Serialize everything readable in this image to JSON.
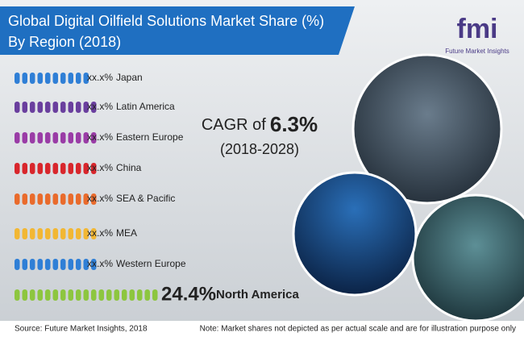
{
  "header": {
    "title_line1": "Global Digital Oilfield Solutions Market Share (%)",
    "title_line2": "By Region (2018)"
  },
  "logo": {
    "mark": "fmi",
    "name": "Future Market Insights"
  },
  "regions": [
    {
      "share": "xx.x%",
      "region": "Japan",
      "color": "#2f7fd6",
      "pills": 10
    },
    {
      "share": "xx.x%",
      "region": "Latin America",
      "color": "#6a3f9e",
      "pills": 11
    },
    {
      "share": "xx.x%",
      "region": "Eastern Europe",
      "color": "#9a3ca6",
      "pills": 11
    },
    {
      "share": "xx.x%",
      "region": "China",
      "color": "#d8262c",
      "pills": 11
    },
    {
      "share": "xx.x%",
      "region": "SEA & Pacific",
      "color": "#e96b2c",
      "pills": 11
    },
    {
      "share": "xx.x%",
      "region": "MEA",
      "color": "#f2b733",
      "pills": 11
    },
    {
      "share": "xx.x%",
      "region": "Western Europe",
      "color": "#2f7fd6",
      "pills": 11
    },
    {
      "share": "24.4%",
      "region": "North America",
      "color": "#8dc63f",
      "pills": 19
    }
  ],
  "cagr": {
    "label": "CAGR of",
    "value": "6.3%",
    "period": "(2018-2028)"
  },
  "footer": {
    "source": "Source: Future Market Insights, 2018",
    "note": "Note: Market shares not depicted as per actual scale and are for illustration purpose only"
  }
}
